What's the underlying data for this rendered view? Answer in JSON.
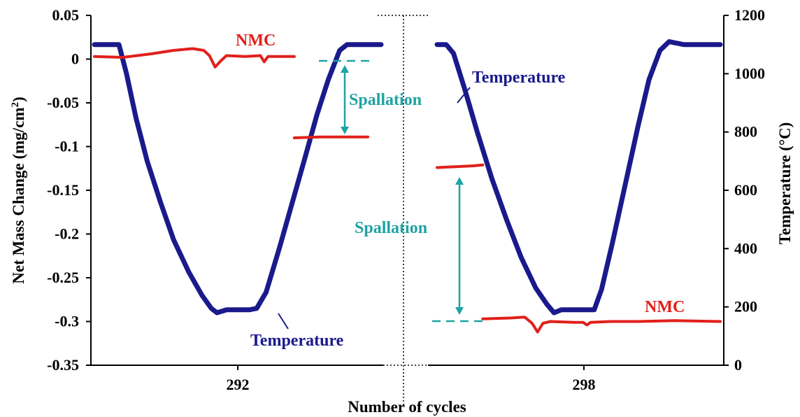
{
  "chart_data": {
    "type": "line",
    "xlabel": "Number of cycles",
    "ylabel_left": "Net Mass Change (mg/cm",
    "ylabel_left_sup": "2",
    "ylabel_left_close": ")",
    "ylabel_right": "Temperature (°C)",
    "x_ticks": [
      "292",
      "298"
    ],
    "y_left": {
      "min": -0.35,
      "max": 0.05,
      "ticks": [
        "0.05",
        "0",
        "-0.05",
        "-0.1",
        "-0.15",
        "-0.2",
        "-0.25",
        "-0.3",
        "-0.35"
      ]
    },
    "y_right": {
      "min": 0,
      "max": 1200,
      "ticks": [
        "1200",
        "1000",
        "800",
        "600",
        "400",
        "200",
        "0"
      ]
    },
    "grid": false,
    "colors": {
      "temperature": "#1a1a8c",
      "nmc": "#e0201b",
      "spallation": "#1fa3a3"
    },
    "annotations": {
      "nmc_left": "NMC",
      "nmc_right": "NMC",
      "temp_left": "Temperature",
      "temp_right": "Temperature",
      "spall_left": "Spallation",
      "spall_right": "Spallation"
    },
    "series": [
      {
        "segment": "left",
        "kind": "temperature",
        "points": [
          [
            0.0,
            1100
          ],
          [
            0.08,
            1100
          ],
          [
            0.13,
            1100
          ],
          [
            0.17,
            1000
          ],
          [
            0.22,
            850
          ],
          [
            0.28,
            700
          ],
          [
            0.35,
            560
          ],
          [
            0.42,
            430
          ],
          [
            0.5,
            320
          ],
          [
            0.57,
            240
          ],
          [
            0.62,
            195
          ],
          [
            0.65,
            180
          ],
          [
            0.7,
            190
          ],
          [
            0.76,
            190
          ],
          [
            0.82,
            190
          ],
          [
            0.86,
            195
          ],
          [
            0.91,
            250
          ],
          [
            0.98,
            400
          ],
          [
            1.05,
            560
          ],
          [
            1.12,
            720
          ],
          [
            1.18,
            860
          ],
          [
            1.24,
            980
          ],
          [
            1.3,
            1080
          ],
          [
            1.34,
            1100
          ],
          [
            1.4,
            1100
          ],
          [
            1.52,
            1100
          ]
        ]
      },
      {
        "segment": "left",
        "kind": "nmc",
        "points": [
          [
            0.0,
            0.003
          ],
          [
            0.15,
            0.002
          ],
          [
            0.3,
            0.006
          ],
          [
            0.42,
            0.01
          ],
          [
            0.52,
            0.012
          ],
          [
            0.58,
            0.01
          ],
          [
            0.61,
            0.004
          ],
          [
            0.64,
            -0.009
          ],
          [
            0.67,
            -0.002
          ],
          [
            0.7,
            0.004
          ],
          [
            0.8,
            0.003
          ],
          [
            0.88,
            0.004
          ],
          [
            0.9,
            -0.003
          ],
          [
            0.92,
            0.003
          ],
          [
            1.0,
            0.003
          ],
          [
            1.06,
            0.003
          ]
        ]
      },
      {
        "segment": "left",
        "kind": "nmc",
        "points": [
          [
            1.06,
            -0.09
          ],
          [
            1.2,
            -0.089
          ],
          [
            1.35,
            -0.089
          ],
          [
            1.45,
            -0.089
          ]
        ]
      },
      {
        "segment": "right",
        "kind": "temperature",
        "points": [
          [
            0.0,
            1100
          ],
          [
            0.05,
            1100
          ],
          [
            0.09,
            1070
          ],
          [
            0.15,
            950
          ],
          [
            0.22,
            800
          ],
          [
            0.3,
            640
          ],
          [
            0.38,
            500
          ],
          [
            0.46,
            370
          ],
          [
            0.54,
            265
          ],
          [
            0.6,
            210
          ],
          [
            0.64,
            180
          ],
          [
            0.68,
            190
          ],
          [
            0.74,
            190
          ],
          [
            0.8,
            190
          ],
          [
            0.86,
            190
          ],
          [
            0.9,
            260
          ],
          [
            0.96,
            420
          ],
          [
            1.03,
            620
          ],
          [
            1.1,
            820
          ],
          [
            1.16,
            980
          ],
          [
            1.22,
            1080
          ],
          [
            1.27,
            1110
          ],
          [
            1.35,
            1100
          ],
          [
            1.45,
            1100
          ],
          [
            1.55,
            1100
          ]
        ]
      },
      {
        "segment": "right",
        "kind": "nmc",
        "points": [
          [
            0.0,
            -0.124
          ],
          [
            0.1,
            -0.123
          ],
          [
            0.2,
            -0.122
          ],
          [
            0.25,
            -0.121
          ]
        ]
      },
      {
        "segment": "right",
        "kind": "nmc",
        "points": [
          [
            0.25,
            -0.297
          ],
          [
            0.4,
            -0.296
          ],
          [
            0.48,
            -0.295
          ],
          [
            0.52,
            -0.302
          ],
          [
            0.55,
            -0.312
          ],
          [
            0.58,
            -0.302
          ],
          [
            0.62,
            -0.3
          ],
          [
            0.75,
            -0.301
          ],
          [
            0.8,
            -0.301
          ],
          [
            0.82,
            -0.304
          ],
          [
            0.84,
            -0.301
          ],
          [
            0.95,
            -0.3
          ],
          [
            1.1,
            -0.3
          ],
          [
            1.3,
            -0.299
          ],
          [
            1.55,
            -0.3
          ]
        ]
      }
    ]
  }
}
